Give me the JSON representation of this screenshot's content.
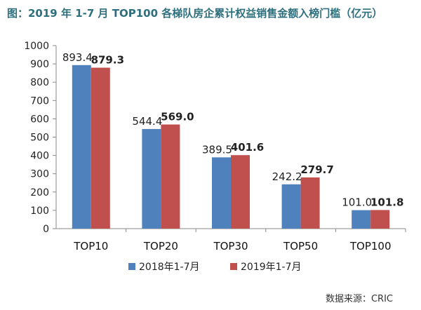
{
  "title": "图：2019 年 1-7 月 TOP100 各梯队房企累计权益销售金额入榜门槛（亿元）",
  "source": "数据来源：CRIC",
  "colors": {
    "series_2018": "#4f81bd",
    "series_2019": "#c0504d",
    "title": "#2e6f7d"
  },
  "chart_data": {
    "type": "bar",
    "title": "图：2019 年 1-7 月 TOP100 各梯队房企累计权益销售金额入榜门槛（亿元）",
    "xlabel": "",
    "ylabel": "",
    "categories": [
      "TOP10",
      "TOP20",
      "TOP30",
      "TOP50",
      "TOP100"
    ],
    "series": [
      {
        "name": "2018年1-7月",
        "values": [
          893.4,
          544.4,
          389.5,
          242.2,
          101.0
        ],
        "labels": [
          "893.4",
          "544.4",
          "389.5",
          "242.2",
          "101.0"
        ]
      },
      {
        "name": "2019年1-7月",
        "values": [
          879.3,
          569.0,
          401.6,
          279.7,
          101.8
        ],
        "labels": [
          "879.3",
          "569.0",
          "401.6",
          "279.7",
          "101.8"
        ]
      }
    ],
    "ylim": [
      0,
      1000
    ],
    "yticks": [
      0,
      100,
      200,
      300,
      400,
      500,
      600,
      700,
      800,
      900,
      1000
    ],
    "grid": false,
    "legend_position": "bottom"
  }
}
